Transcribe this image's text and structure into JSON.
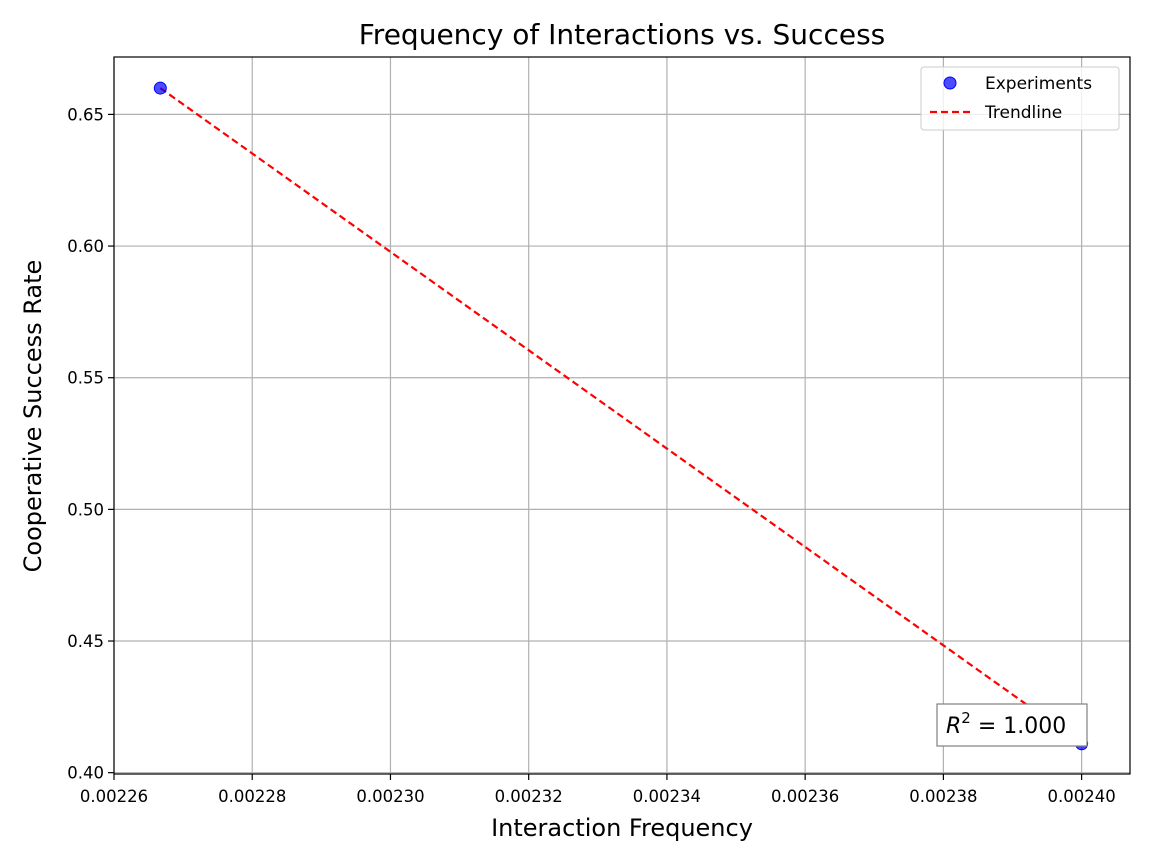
{
  "chart_data": {
    "type": "scatter",
    "title": "Frequency of Interactions vs. Success",
    "xlabel": "Interaction Frequency",
    "ylabel": "Cooperative Success Rate",
    "xlim": [
      0.00226,
      0.002407
    ],
    "ylim": [
      0.3995,
      0.6718
    ],
    "grid": true,
    "legend_position": "top-right",
    "x_ticks": [
      {
        "value": 0.00226,
        "label": "0.00226"
      },
      {
        "value": 0.00228,
        "label": "0.00228"
      },
      {
        "value": 0.0023,
        "label": "0.00230"
      },
      {
        "value": 0.00232,
        "label": "0.00232"
      },
      {
        "value": 0.00234,
        "label": "0.00234"
      },
      {
        "value": 0.00236,
        "label": "0.00236"
      },
      {
        "value": 0.00238,
        "label": "0.00238"
      },
      {
        "value": 0.0024,
        "label": "0.00240"
      }
    ],
    "y_ticks": [
      {
        "value": 0.4,
        "label": "0.40"
      },
      {
        "value": 0.45,
        "label": "0.45"
      },
      {
        "value": 0.5,
        "label": "0.50"
      },
      {
        "value": 0.55,
        "label": "0.55"
      },
      {
        "value": 0.6,
        "label": "0.60"
      },
      {
        "value": 0.65,
        "label": "0.65"
      }
    ],
    "series": [
      {
        "name": "Experiments",
        "kind": "scatter",
        "color": "#0000ff",
        "points": [
          {
            "x": 0.0022667,
            "y": 0.66
          },
          {
            "x": 0.0024,
            "y": 0.411
          }
        ]
      },
      {
        "name": "Trendline",
        "kind": "line",
        "style": "dashed",
        "color": "#ff0000",
        "points": [
          {
            "x": 0.0022667,
            "y": 0.66
          },
          {
            "x": 0.0024,
            "y": 0.411
          }
        ]
      }
    ],
    "annotation": {
      "text_prefix": "R",
      "superscript": "2",
      "text_suffix": " = 1.000"
    }
  }
}
